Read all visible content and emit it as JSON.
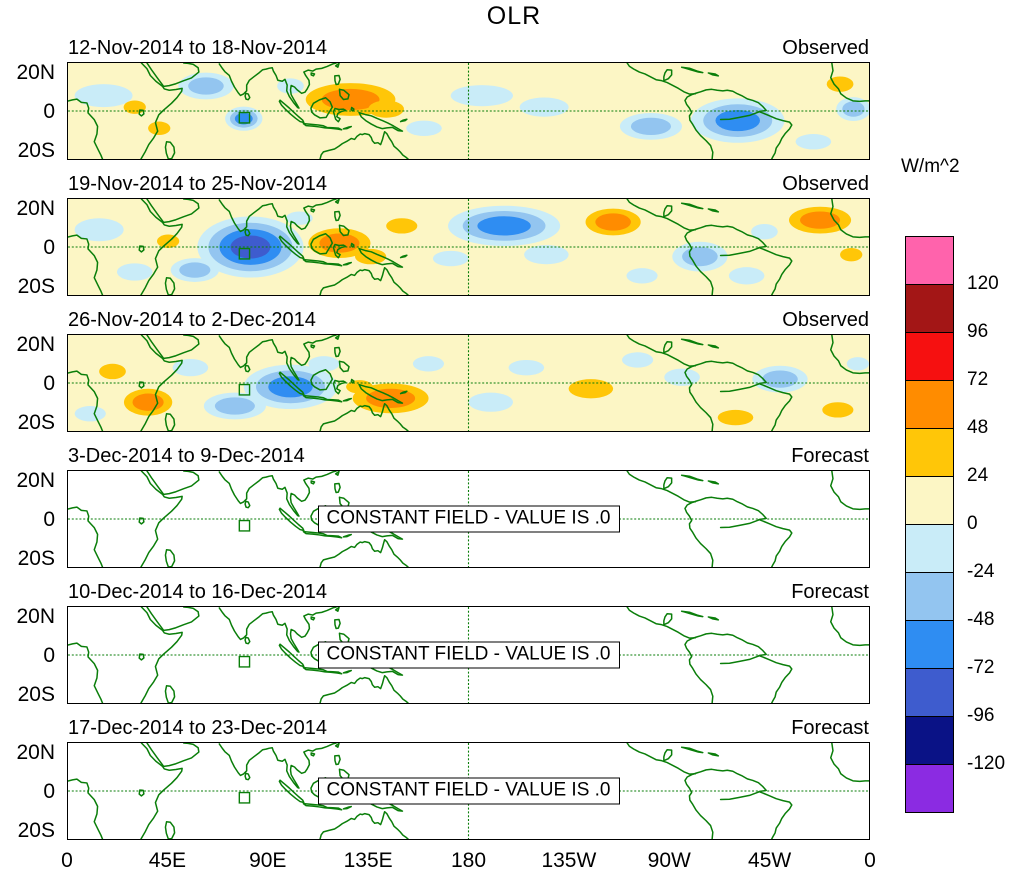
{
  "chart_data": {
    "type": "filled_contour_map_panels",
    "title": "OLR",
    "units": "W/m^2",
    "x_axis": {
      "ticks": [
        "0",
        "45E",
        "90E",
        "135E",
        "180",
        "135W",
        "90W",
        "45W",
        "0"
      ],
      "range_deg_lon": [
        0,
        360
      ]
    },
    "y_axis": {
      "ticks": [
        "20N",
        "0",
        "20S"
      ],
      "range_deg_lat": [
        25,
        -25
      ]
    },
    "colorbar": {
      "tick_labels": [
        "120",
        "96",
        "72",
        "48",
        "24",
        "0",
        "-24",
        "-48",
        "-72",
        "-96",
        "-120"
      ],
      "colors_top_to_bottom": [
        "#FF63AC",
        "#A31616",
        "#F61010",
        "#FF8C00",
        "#FFC608",
        "#FCF6C5",
        "#C9ECF8",
        "#93C5F0",
        "#2F8DF2",
        "#3E5CCE",
        "#0A1286",
        "#8B2BE2"
      ],
      "band_width_w_m2": 24
    },
    "grid": {
      "equator_dashed": true,
      "dateline_dashed": true,
      "line_color": "#0A7E0A"
    },
    "highlight_box": {
      "lon_e": [
        77,
        81.6
      ],
      "lat": [
        -6.2,
        -0.8
      ]
    },
    "feature_band_meaning": "band n = anomaly in (24*(n-1) .. 24*n) W/m^2; negative bands are blue (negative OLR anomaly), positive bands yellow/orange; positions and magnitudes estimated from the map",
    "panels": [
      {
        "date_range": "12-Nov-2014 to 18-Nov-2014",
        "type_label": "Observed",
        "kind": "observed",
        "anomaly_features": [
          {
            "lon_e": 16,
            "lat": 8,
            "rx_deg": 13,
            "ry_deg": 6,
            "band": -1
          },
          {
            "lon_e": 30,
            "lat": 2,
            "rx_deg": 5,
            "ry_deg": 3.5,
            "band": 1
          },
          {
            "lon_e": 41,
            "lat": -9,
            "rx_deg": 5,
            "ry_deg": 3.5,
            "band": 1
          },
          {
            "lon_e": 62,
            "lat": 13,
            "rx_deg": 8,
            "ry_deg": 4.5,
            "band": -2
          },
          {
            "lon_e": 79,
            "lat": -4,
            "rx_deg": 4,
            "ry_deg": 3,
            "band": -3
          },
          {
            "lon_e": 100,
            "lat": 13,
            "rx_deg": 6,
            "ry_deg": 4,
            "band": -1
          },
          {
            "lon_e": 127,
            "lat": 6,
            "rx_deg": 13,
            "ry_deg": 5.5,
            "band": 2
          },
          {
            "lon_e": 143,
            "lat": 1,
            "rx_deg": 8,
            "ry_deg": 4.5,
            "band": 1
          },
          {
            "lon_e": 160,
            "lat": -9,
            "rx_deg": 8,
            "ry_deg": 4,
            "band": -1
          },
          {
            "lon_e": 186,
            "lat": 8,
            "rx_deg": 14,
            "ry_deg": 5.5,
            "band": -1
          },
          {
            "lon_e": 214,
            "lat": 2,
            "rx_deg": 11,
            "ry_deg": 5,
            "band": -1
          },
          {
            "lon_e": 262,
            "lat": -8,
            "rx_deg": 9,
            "ry_deg": 4.5,
            "band": -2
          },
          {
            "lon_e": 301,
            "lat": -5,
            "rx_deg": 10,
            "ry_deg": 5.5,
            "band": -3
          },
          {
            "lon_e": 335,
            "lat": -16,
            "rx_deg": 8,
            "ry_deg": 4,
            "band": -1
          },
          {
            "lon_e": 347,
            "lat": 14,
            "rx_deg": 6,
            "ry_deg": 4,
            "band": 1
          },
          {
            "lon_e": 353,
            "lat": 1,
            "rx_deg": 5,
            "ry_deg": 4,
            "band": -2
          }
        ]
      },
      {
        "date_range": "19-Nov-2014 to 25-Nov-2014",
        "type_label": "Observed",
        "kind": "observed",
        "anomaly_features": [
          {
            "lon_e": 14,
            "lat": 9,
            "rx_deg": 11,
            "ry_deg": 6,
            "band": -1
          },
          {
            "lon_e": 30,
            "lat": -13,
            "rx_deg": 8,
            "ry_deg": 4.5,
            "band": -1
          },
          {
            "lon_e": 45,
            "lat": 3,
            "rx_deg": 5,
            "ry_deg": 3.5,
            "band": 1
          },
          {
            "lon_e": 57,
            "lat": -12,
            "rx_deg": 7,
            "ry_deg": 4,
            "band": -2
          },
          {
            "lon_e": 82,
            "lat": 0,
            "rx_deg": 9,
            "ry_deg": 6,
            "band": -4
          },
          {
            "lon_e": 104,
            "lat": 15,
            "rx_deg": 6,
            "ry_deg": 3.5,
            "band": -1
          },
          {
            "lon_e": 122,
            "lat": 2,
            "rx_deg": 9,
            "ry_deg": 5,
            "band": 2
          },
          {
            "lon_e": 136,
            "lat": -5,
            "rx_deg": 7,
            "ry_deg": 4,
            "band": 1
          },
          {
            "lon_e": 150,
            "lat": 11,
            "rx_deg": 7,
            "ry_deg": 4,
            "band": 1
          },
          {
            "lon_e": 172,
            "lat": -6,
            "rx_deg": 8,
            "ry_deg": 4,
            "band": -1
          },
          {
            "lon_e": 196,
            "lat": 11,
            "rx_deg": 12,
            "ry_deg": 5,
            "band": -3
          },
          {
            "lon_e": 215,
            "lat": -4,
            "rx_deg": 10,
            "ry_deg": 5,
            "band": -1
          },
          {
            "lon_e": 245,
            "lat": 13,
            "rx_deg": 8,
            "ry_deg": 4.5,
            "band": 2
          },
          {
            "lon_e": 258,
            "lat": -15,
            "rx_deg": 7,
            "ry_deg": 4,
            "band": -1
          },
          {
            "lon_e": 284,
            "lat": -5,
            "rx_deg": 8,
            "ry_deg": 5,
            "band": -2
          },
          {
            "lon_e": 305,
            "lat": -15,
            "rx_deg": 8,
            "ry_deg": 4.5,
            "band": -1
          },
          {
            "lon_e": 313,
            "lat": 8,
            "rx_deg": 6,
            "ry_deg": 4,
            "band": -1
          },
          {
            "lon_e": 338,
            "lat": 14,
            "rx_deg": 9,
            "ry_deg": 4.5,
            "band": 2
          },
          {
            "lon_e": 352,
            "lat": -4,
            "rx_deg": 5,
            "ry_deg": 3.5,
            "band": 1
          }
        ]
      },
      {
        "date_range": "26-Nov-2014 to 2-Dec-2014",
        "type_label": "Observed",
        "kind": "observed",
        "anomaly_features": [
          {
            "lon_e": 20,
            "lat": 6,
            "rx_deg": 6,
            "ry_deg": 4,
            "band": 1
          },
          {
            "lon_e": 36,
            "lat": -10,
            "rx_deg": 7,
            "ry_deg": 4.5,
            "band": 2
          },
          {
            "lon_e": 10,
            "lat": -16,
            "rx_deg": 7,
            "ry_deg": 4,
            "band": -1
          },
          {
            "lon_e": 55,
            "lat": 8,
            "rx_deg": 8,
            "ry_deg": 4.5,
            "band": -1
          },
          {
            "lon_e": 75,
            "lat": -12,
            "rx_deg": 9,
            "ry_deg": 4.5,
            "band": -2
          },
          {
            "lon_e": 100,
            "lat": -2,
            "rx_deg": 10,
            "ry_deg": 5.5,
            "band": -3
          },
          {
            "lon_e": 115,
            "lat": 10,
            "rx_deg": 7,
            "ry_deg": 4,
            "band": -1
          },
          {
            "lon_e": 145,
            "lat": -8,
            "rx_deg": 11,
            "ry_deg": 5,
            "band": 2
          },
          {
            "lon_e": 131,
            "lat": -2,
            "rx_deg": 6,
            "ry_deg": 3.5,
            "band": 1
          },
          {
            "lon_e": 162,
            "lat": 10,
            "rx_deg": 7,
            "ry_deg": 4,
            "band": -1
          },
          {
            "lon_e": 190,
            "lat": -10,
            "rx_deg": 10,
            "ry_deg": 5,
            "band": -1
          },
          {
            "lon_e": 206,
            "lat": 8,
            "rx_deg": 8,
            "ry_deg": 4,
            "band": -1
          },
          {
            "lon_e": 235,
            "lat": -3,
            "rx_deg": 10,
            "ry_deg": 5,
            "band": 1
          },
          {
            "lon_e": 256,
            "lat": 12,
            "rx_deg": 7,
            "ry_deg": 4,
            "band": -1
          },
          {
            "lon_e": 276,
            "lat": 3,
            "rx_deg": 8,
            "ry_deg": 4.5,
            "band": -1
          },
          {
            "lon_e": 300,
            "lat": -18,
            "rx_deg": 8,
            "ry_deg": 4,
            "band": 1
          },
          {
            "lon_e": 320,
            "lat": 2,
            "rx_deg": 8,
            "ry_deg": 4.5,
            "band": -2
          },
          {
            "lon_e": 346,
            "lat": -14,
            "rx_deg": 7,
            "ry_deg": 4,
            "band": 1
          },
          {
            "lon_e": 355,
            "lat": 10,
            "rx_deg": 5,
            "ry_deg": 3.5,
            "band": -1
          }
        ]
      },
      {
        "date_range": "3-Dec-2014 to 9-Dec-2014",
        "type_label": "Forecast",
        "kind": "forecast",
        "note": "CONSTANT FIELD - VALUE IS .0",
        "constant_value": 0
      },
      {
        "date_range": "10-Dec-2014 to 16-Dec-2014",
        "type_label": "Forecast",
        "kind": "forecast",
        "note": "CONSTANT FIELD - VALUE IS .0",
        "constant_value": 0
      },
      {
        "date_range": "17-Dec-2014 to 23-Dec-2014",
        "type_label": "Forecast",
        "kind": "forecast",
        "note": "CONSTANT FIELD - VALUE IS .0",
        "constant_value": 0
      }
    ]
  }
}
